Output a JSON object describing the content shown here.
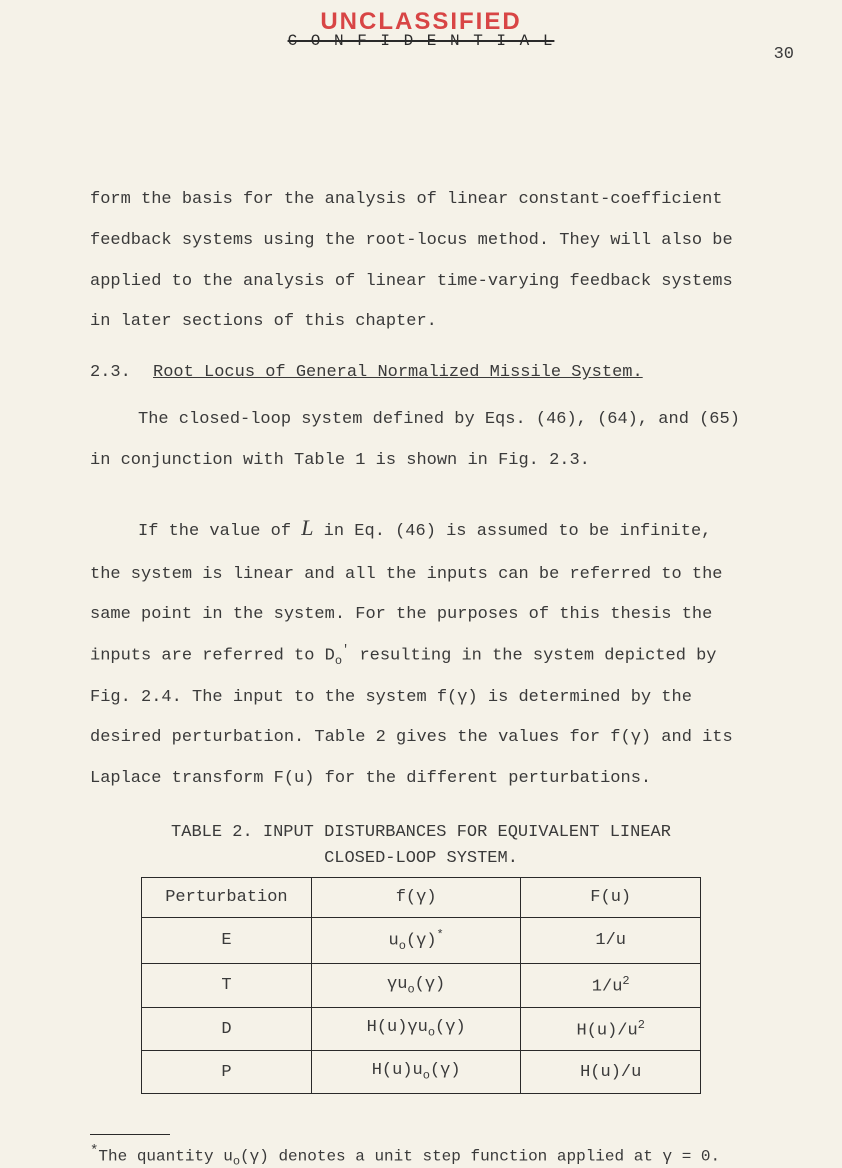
{
  "header": {
    "stamp": "UNCLASSIFIED",
    "strikethrough": "C O N F I D E N T I A L",
    "page_number": "30"
  },
  "body": {
    "para1": "form the basis for the analysis of linear constant-coefficient feedback systems using the root-locus method.  They will also be applied to the analysis of linear time-varying feedback systems in later sections of this chapter.",
    "section": {
      "number": "2.3.",
      "title": "Root Locus of General Normalized Missile System."
    },
    "para2": "The closed-loop system defined by Eqs. (46), (64), and (65) in conjunction with Table 1 is shown in Fig. 2.3.",
    "para3_part1": "If the value of",
    "para3_script": "L",
    "para3_part2": " in Eq. (46) is assumed to be infinite, the system is linear and all the inputs can be referred to the same point in the system.  For the purposes of this thesis the inputs are referred to D",
    "para3_sub": "o",
    "para3_sup": "'",
    "para3_part3": " resulting in the system depicted by Fig. 2.4.  The input to the system f(γ) is determined by the desired perturbation. Table 2 gives the values for f(γ) and its Laplace transform F(u) for the different perturbations."
  },
  "table": {
    "title_line1": "TABLE 2.   INPUT DISTURBANCES FOR EQUIVALENT LINEAR",
    "title_line2": "CLOSED-LOOP SYSTEM.",
    "headers": {
      "col1": "Perturbation",
      "col2": "f(γ)",
      "col3": "F(u)"
    },
    "rows": [
      {
        "perturbation": "E",
        "f_gamma_pre": "u",
        "f_gamma_sub": "o",
        "f_gamma_post": "(γ)",
        "f_gamma_sup": "*",
        "f_u": "1/u"
      },
      {
        "perturbation": "T",
        "f_gamma_pre": "γu",
        "f_gamma_sub": "o",
        "f_gamma_post": "(γ)",
        "f_u_pre": "1/u",
        "f_u_sup": "2"
      },
      {
        "perturbation": "D",
        "f_gamma_pre": "H(u)γu",
        "f_gamma_sub": "o",
        "f_gamma_post": "(γ)",
        "f_u_pre": "H(u)/u",
        "f_u_sup": "2"
      },
      {
        "perturbation": "P",
        "f_gamma_pre": "H(u)u",
        "f_gamma_sub": "o",
        "f_gamma_post": "(γ)",
        "f_u": "H(u)/u"
      }
    ]
  },
  "footnote": {
    "star": "*",
    "text_pre": "The quantity  u",
    "text_sub": "o",
    "text_post": "(γ) denotes a unit step function applied at γ = 0."
  }
}
